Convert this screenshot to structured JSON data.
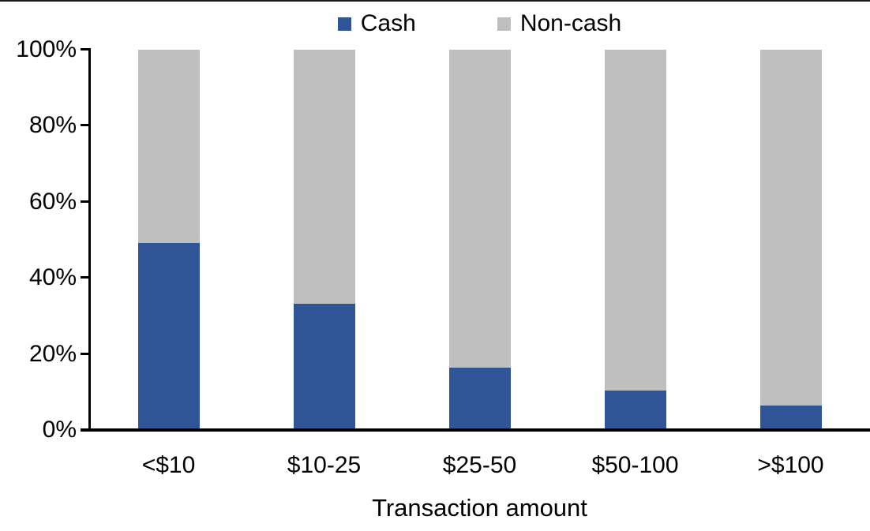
{
  "colors": {
    "cash": "#2F5597",
    "non_cash": "#BFBFBF",
    "axis": "#000000",
    "text": "#000000",
    "background": "#FFFFFF"
  },
  "legend": {
    "position": "top-center",
    "items": [
      {
        "label": "Cash",
        "color": "#2F5597"
      },
      {
        "label": "Non-cash",
        "color": "#BFBFBF"
      }
    ]
  },
  "chart_data": {
    "type": "bar",
    "stacked": true,
    "stack_mode": "percent",
    "title": "",
    "xlabel": "Transaction amount",
    "ylabel": "",
    "ylim": [
      0,
      100
    ],
    "ytick_step": 20,
    "ytick_labels": [
      "0%",
      "20%",
      "40%",
      "60%",
      "80%",
      "100%"
    ],
    "grid": false,
    "legend_position": "top",
    "categories": [
      "<$10",
      "$10-25",
      "$25-50",
      "$50-100",
      ">$100"
    ],
    "series": [
      {
        "name": "Cash",
        "color": "#2F5597",
        "values": [
          49,
          33,
          16,
          10,
          6
        ]
      },
      {
        "name": "Non-cash",
        "color": "#BFBFBF",
        "values": [
          51,
          67,
          84,
          90,
          94
        ]
      }
    ]
  }
}
